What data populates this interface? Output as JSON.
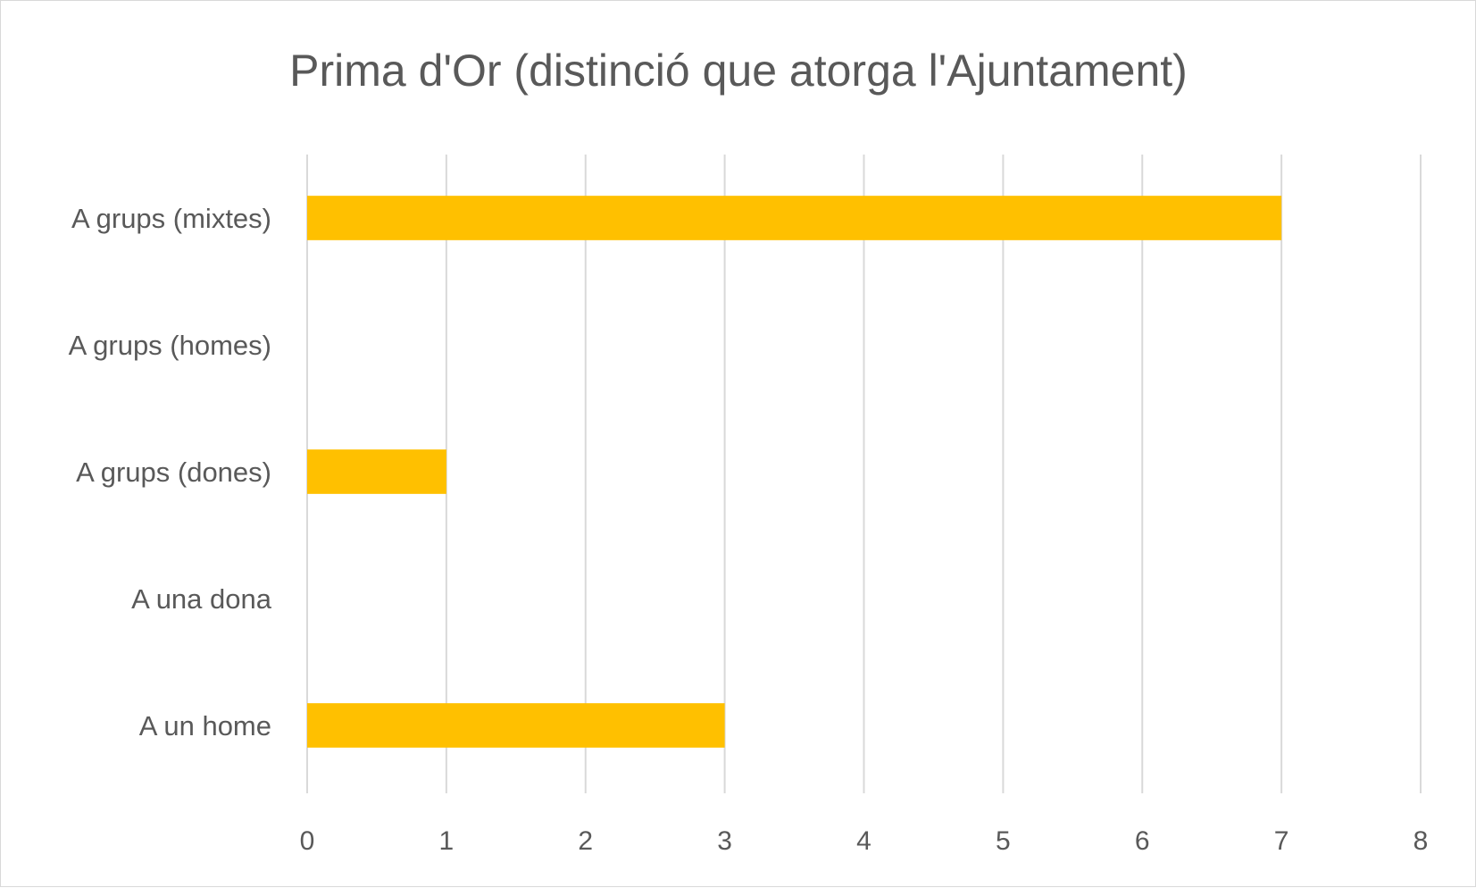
{
  "chart_data": {
    "type": "bar",
    "orientation": "horizontal",
    "title": "Prima d'Or (distinció que atorga l'Ajuntament)",
    "xlabel": "",
    "ylabel": "",
    "categories": [
      "A grups (mixtes)",
      "A grups (homes)",
      "A grups (dones)",
      "A una dona",
      "A un home"
    ],
    "values": [
      7,
      0,
      1,
      0,
      3
    ],
    "xlim": [
      0,
      8
    ],
    "xticks": [
      "0",
      "1",
      "2",
      "3",
      "4",
      "5",
      "6",
      "7",
      "8"
    ],
    "grid": true,
    "legend": "none",
    "bar_color": "#FFC000",
    "grid_color": "#D9D9D9"
  }
}
